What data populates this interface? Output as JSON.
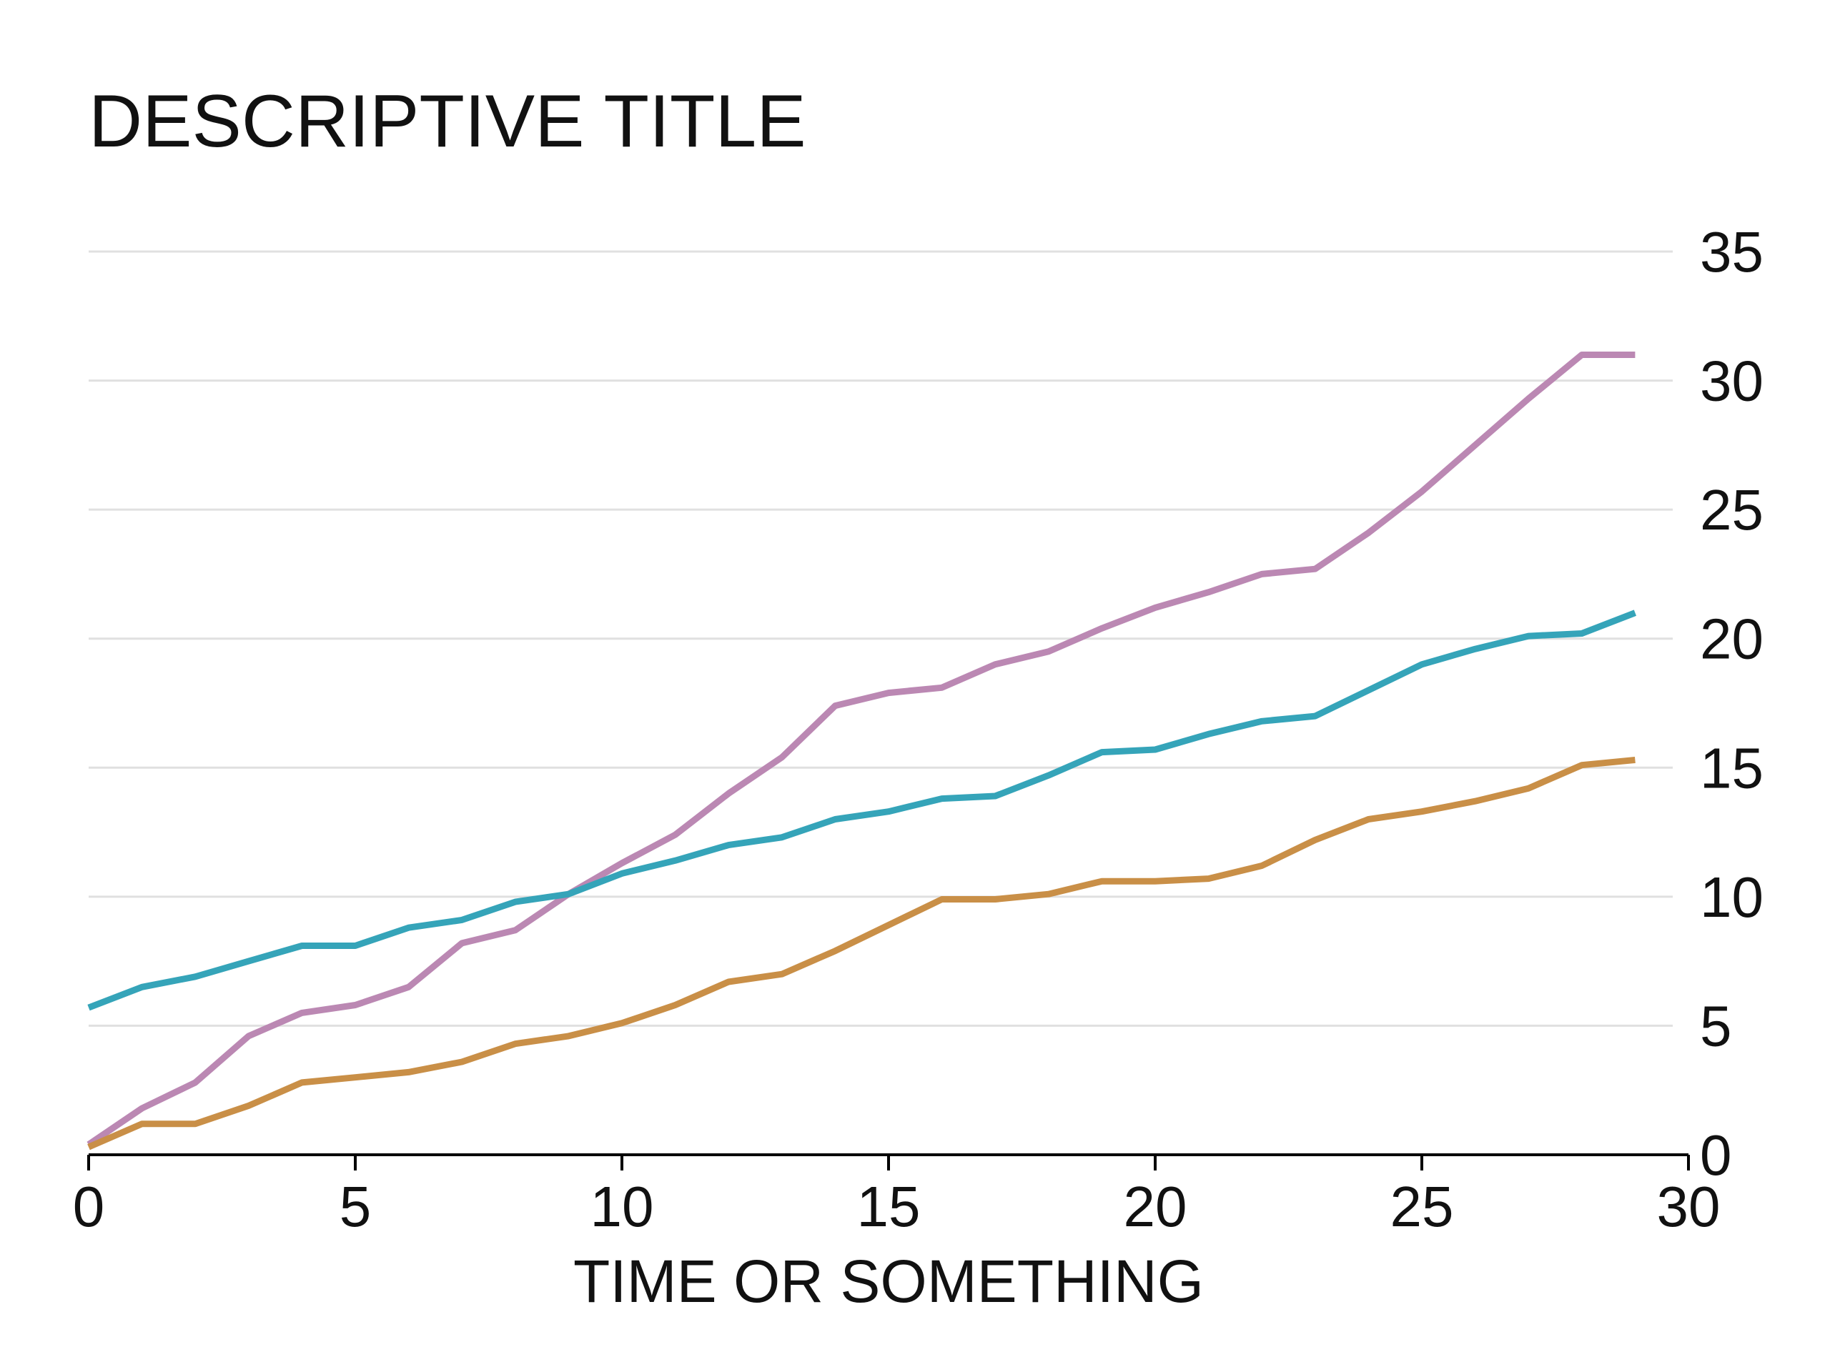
{
  "chart_data": {
    "type": "line",
    "title": "DESCRIPTIVE TITLE",
    "xlabel": "TIME OR SOMETHING",
    "ylabel": "",
    "xlim": [
      0,
      30
    ],
    "ylim": [
      0,
      35
    ],
    "x_ticks": [
      "0",
      "5",
      "10",
      "15",
      "20",
      "25",
      "30"
    ],
    "y_ticks": [
      "0",
      "5",
      "10",
      "15",
      "20",
      "25",
      "30",
      "35"
    ],
    "y_axis_position": "right",
    "grid": "horizontal",
    "legend": "none",
    "x": [
      0,
      1,
      2,
      3,
      4,
      5,
      6,
      7,
      8,
      9,
      10,
      11,
      12,
      13,
      14,
      15,
      16,
      17,
      18,
      19,
      20,
      21,
      22,
      23,
      24,
      25,
      26,
      27,
      28,
      29
    ],
    "series": [
      {
        "color": "#bb88b3",
        "values": [
          0.4,
          1.8,
          2.8,
          4.6,
          5.5,
          5.8,
          6.5,
          8.2,
          8.7,
          10.1,
          11.3,
          12.4,
          14.0,
          15.4,
          17.4,
          17.9,
          18.1,
          19.0,
          19.5,
          20.4,
          21.2,
          21.8,
          22.5,
          22.7,
          24.1,
          25.7,
          27.5,
          29.3,
          31.0,
          31.0
        ]
      },
      {
        "color": "#35a4b9",
        "values": [
          5.7,
          6.5,
          6.9,
          7.5,
          8.1,
          8.1,
          8.8,
          9.1,
          9.8,
          10.1,
          10.9,
          11.4,
          12.0,
          12.3,
          13.0,
          13.3,
          13.8,
          13.9,
          14.7,
          15.6,
          15.7,
          16.3,
          16.8,
          17.0,
          18.0,
          19.0,
          19.6,
          20.1,
          20.2,
          21.0
        ]
      },
      {
        "color": "#c98f47",
        "values": [
          0.3,
          1.2,
          1.2,
          1.9,
          2.8,
          3.0,
          3.2,
          3.6,
          4.3,
          4.6,
          5.1,
          5.8,
          6.7,
          7.0,
          7.9,
          8.9,
          9.9,
          9.9,
          10.1,
          10.6,
          10.6,
          10.7,
          11.2,
          12.2,
          13.0,
          13.3,
          13.7,
          14.2,
          15.1,
          15.3
        ]
      }
    ]
  }
}
